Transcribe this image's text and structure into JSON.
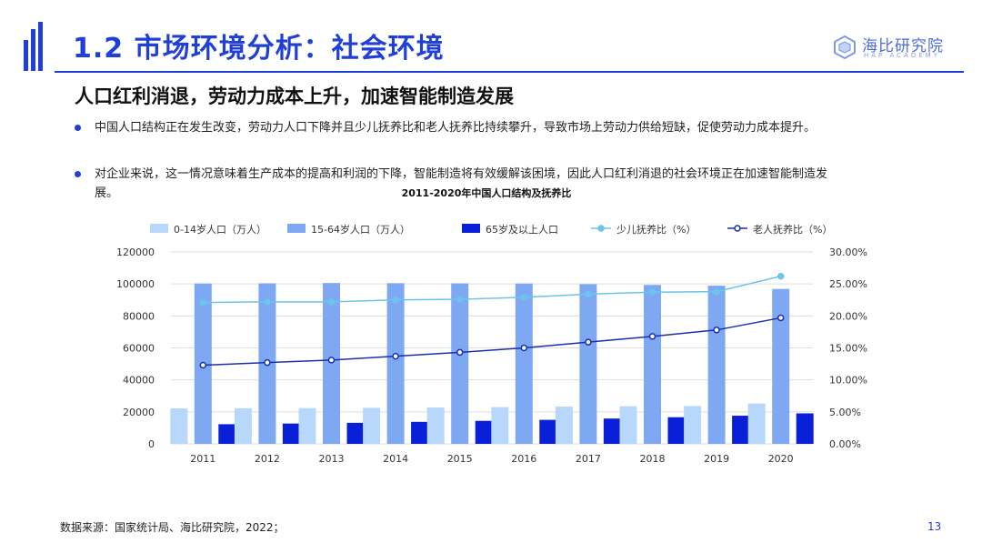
{
  "header": {
    "title": "1.2 市场环境分析：社会环境",
    "logo_text": "海比研究院",
    "logo_sub": "HAP ACADEMY"
  },
  "subtitle": "人口红利消退，劳动力成本上升，加速智能制造发展",
  "bullets": [
    "中国人口结构正在发生改变，劳动力人口下降并且少儿抚养比和老人抚养比持续攀升，导致市场上劳动力供给短缺，促使劳动力成本提升。",
    "对企业来说，这一情况意味着生产成本的提高和利润的下降，智能制造将有效缓解该困境，因此人口红利消退的社会环境正在加速智能制造发展。"
  ],
  "footer": {
    "source": "数据来源：国家统计局、海比研究院，2022；",
    "page_number": "13"
  },
  "colors": {
    "accent": "#1f3fd6",
    "bar_0_14": "#b7d8fa",
    "bar_15_64": "#7fa8f3",
    "bar_65": "#0a1fd8",
    "line_child": "#6cc4ec",
    "line_elderly": "#1a2fb0"
  },
  "chart_data": {
    "type": "bar",
    "title": "2011-2020年中国人口结构及抚养比",
    "categories": [
      "2011",
      "2012",
      "2013",
      "2014",
      "2015",
      "2016",
      "2017",
      "2018",
      "2019",
      "2020"
    ],
    "series": [
      {
        "name": "0-14岁人口（万人）",
        "kind": "bar",
        "axis": "left",
        "values": [
          22164,
          22287,
          22329,
          22558,
          22715,
          23008,
          23348,
          23523,
          23689,
          25277
        ]
      },
      {
        "name": "15-64岁人口（万人）",
        "kind": "bar",
        "axis": "left",
        "values": [
          100283,
          100403,
          100582,
          100469,
          100361,
          100260,
          99829,
          99357,
          98910,
          96871
        ]
      },
      {
        "name": "65岁及以上人口",
        "kind": "bar",
        "axis": "left",
        "values": [
          12288,
          12714,
          13161,
          13755,
          14386,
          15003,
          15831,
          16658,
          17603,
          19064
        ]
      },
      {
        "name": "少儿抚养比（%）",
        "kind": "line",
        "axis": "right",
        "values": [
          22.1,
          22.2,
          22.2,
          22.5,
          22.6,
          22.9,
          23.4,
          23.7,
          23.8,
          26.2
        ]
      },
      {
        "name": "老人抚养比（%）",
        "kind": "line",
        "axis": "right",
        "values": [
          12.3,
          12.7,
          13.1,
          13.7,
          14.3,
          15.0,
          15.9,
          16.8,
          17.8,
          19.7
        ]
      }
    ],
    "yticks_left": [
      "0",
      "20000",
      "40000",
      "60000",
      "80000",
      "100000",
      "120000"
    ],
    "yticks_right": [
      "0.00%",
      "5.00%",
      "10.00%",
      "15.00%",
      "20.00%",
      "25.00%",
      "30.00%"
    ],
    "ylim_left": [
      0,
      120000
    ],
    "ylim_right": [
      0,
      30
    ],
    "grid": true,
    "legend_position": "top"
  }
}
